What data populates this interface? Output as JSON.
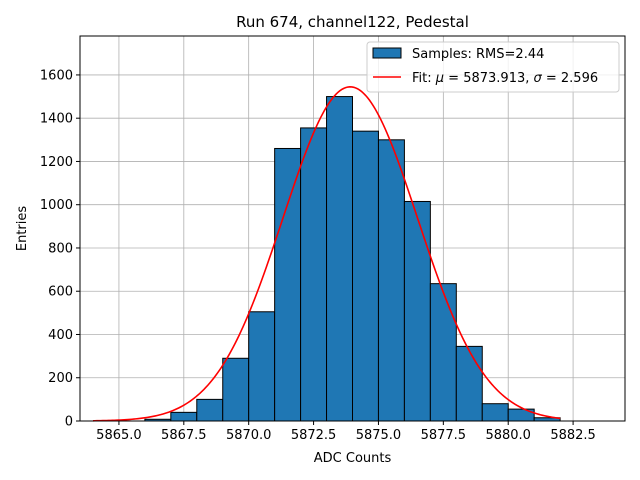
{
  "chart_data": {
    "type": "bar",
    "title": "Run 674, channel122, Pedestal",
    "xlabel": "ADC Counts",
    "ylabel": "Entries",
    "xlim": [
      5863.5,
      5884.5
    ],
    "ylim": [
      0,
      1780
    ],
    "grid": true,
    "legend_location": "top-right",
    "x_ticks": [
      5865.0,
      5867.5,
      5870.0,
      5872.5,
      5875.0,
      5877.5,
      5880.0,
      5882.5
    ],
    "x_tick_labels": [
      "5865.0",
      "5867.5",
      "5870.0",
      "5872.5",
      "5875.0",
      "5877.5",
      "5880.0",
      "5882.5"
    ],
    "y_ticks": [
      0,
      200,
      400,
      600,
      800,
      1000,
      1200,
      1400,
      1600
    ],
    "y_tick_labels": [
      "0",
      "200",
      "400",
      "600",
      "800",
      "1000",
      "1200",
      "1400",
      "1600"
    ],
    "bin_width": 1,
    "bin_left_edges": [
      5866,
      5867,
      5868,
      5869,
      5870,
      5871,
      5872,
      5873,
      5874,
      5875,
      5876,
      5877,
      5878,
      5879,
      5880,
      5881
    ],
    "values": [
      8,
      40,
      100,
      290,
      505,
      1260,
      1355,
      1500,
      1340,
      1300,
      1015,
      635,
      345,
      80,
      55,
      15
    ],
    "series": [
      {
        "name": "Samples: RMS=2.44",
        "kind": "histogram",
        "color": "#1f77b4",
        "edge_color": "#000000"
      },
      {
        "name": "Fit: μ = 5873.913, σ = 2.596",
        "kind": "gaussian-fit",
        "color": "#ff0000",
        "mu": 5873.913,
        "sigma": 2.596,
        "amplitude": 1545,
        "x_range": [
          5864,
          5882
        ]
      }
    ],
    "legend": {
      "samples_label": "Samples: RMS=2.44",
      "fit_prefix": "Fit: ",
      "mu_symbol": "μ",
      "mu_text": " = 5873.913, ",
      "sigma_symbol": "σ",
      "sigma_text": " = 2.596"
    }
  }
}
